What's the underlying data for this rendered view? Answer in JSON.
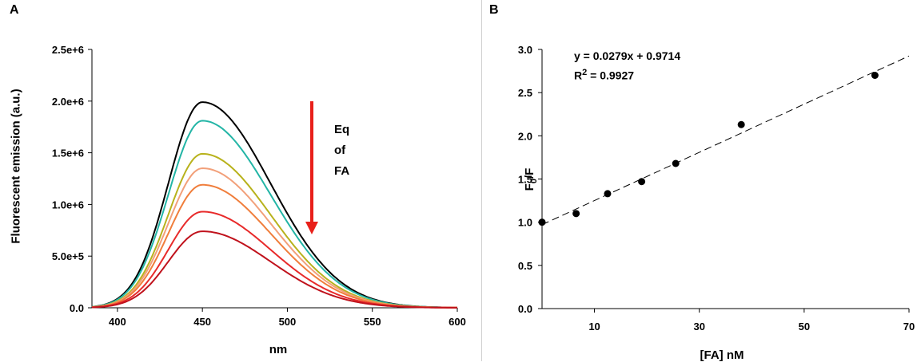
{
  "chart_data": [
    {
      "panel": "A",
      "type": "line",
      "xlabel": "nm",
      "ylabel": "Fluorescent emission (a.u.)",
      "xlim": [
        385,
        600
      ],
      "ylim": [
        0,
        2500000
      ],
      "xticks": [
        400,
        450,
        500,
        550,
        600
      ],
      "yticks": [
        "0.0",
        "5.0e+5",
        "1.0e+6",
        "1.5e+6",
        "2.0e+6",
        "2.5e+6"
      ],
      "grid": false,
      "annotation": {
        "lines": [
          "Eq",
          "of",
          "FA"
        ],
        "arrow": "down",
        "arrow_color": "#e8201a"
      },
      "x": [
        385,
        390,
        395,
        400,
        405,
        410,
        415,
        420,
        425,
        430,
        435,
        440,
        445,
        450,
        455,
        460,
        465,
        470,
        475,
        480,
        485,
        490,
        495,
        500,
        505,
        510,
        515,
        520,
        525,
        530,
        535,
        540,
        545,
        550,
        555,
        560,
        565,
        570,
        575,
        580,
        585,
        590,
        595,
        600
      ],
      "series": [
        {
          "color": "#000000",
          "peak": 1990000
        },
        {
          "color": "#23b5a6",
          "peak": 1810000
        },
        {
          "color": "#b8b21c",
          "peak": 1490000
        },
        {
          "color": "#f2a07a",
          "peak": 1350000
        },
        {
          "color": "#f07e3c",
          "peak": 1190000
        },
        {
          "color": "#e82a2a",
          "peak": 930000
        },
        {
          "color": "#c0121c",
          "peak": 740000
        }
      ],
      "peak_wavelength_nm": 450
    },
    {
      "panel": "B",
      "type": "scatter",
      "xlabel": "[FA] nM",
      "ylabel_main": "F",
      "ylabel_sub": "0",
      "ylabel_rest": "/F",
      "xlim": [
        0,
        70
      ],
      "ylim": [
        0,
        3.0
      ],
      "xticks": [
        10,
        30,
        50,
        70
      ],
      "yticks": [
        "0.0",
        "0.5",
        "1.0",
        "1.5",
        "2.0",
        "2.5",
        "3.0"
      ],
      "grid": false,
      "points": {
        "x": [
          0,
          6.5,
          12.5,
          19,
          25.5,
          38,
          63.5
        ],
        "y": [
          1.0,
          1.1,
          1.33,
          1.47,
          1.68,
          2.13,
          2.7
        ]
      },
      "fit": {
        "slope": 0.0279,
        "intercept": 0.9714,
        "style": "dashed"
      },
      "equation": "y = 0.0279x + 0.9714",
      "r2_prefix": "R",
      "r2_exp": "2",
      "r2_suffix": " = 0.9927"
    }
  ]
}
